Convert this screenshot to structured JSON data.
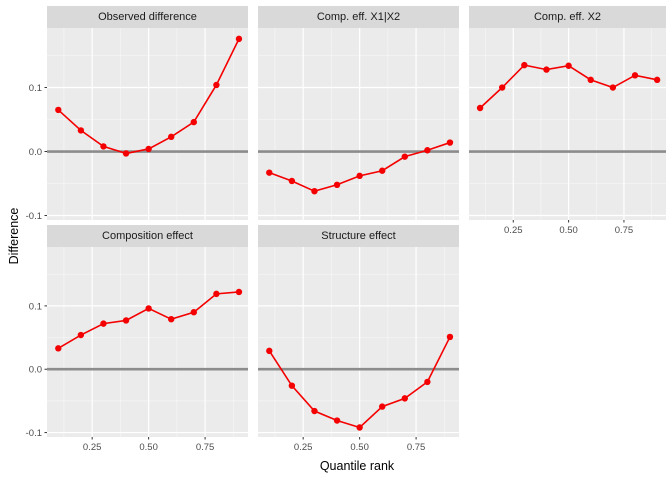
{
  "chart_data": {
    "type": "line",
    "xlabel": "Quantile rank",
    "ylabel": "Difference",
    "x": [
      0.1,
      0.2,
      0.3,
      0.4,
      0.5,
      0.6,
      0.7,
      0.8,
      0.9
    ],
    "x_ticks": {
      "values": [
        0.25,
        0.5,
        0.75
      ],
      "labels": [
        "0.25",
        "0.50",
        "0.75"
      ]
    },
    "y_ticks": {
      "values": [
        -0.1,
        0,
        0.1
      ],
      "labels": [
        "-0.1",
        "0.0",
        "0.1"
      ]
    },
    "x_minor": [
      0.125,
      0.375,
      0.625,
      0.875
    ],
    "y_minor": [
      -0.05,
      0.05,
      0.15
    ],
    "xlim": [
      0.05,
      0.94
    ],
    "ylim": [
      -0.107,
      0.193
    ],
    "grid": "on",
    "legend": "none",
    "zero_line": 0,
    "facets": [
      {
        "title": "Observed difference",
        "row": 0,
        "col": 0,
        "values": [
          0.065,
          0.033,
          0.008,
          -0.003,
          0.004,
          0.023,
          0.046,
          0.104,
          0.176
        ]
      },
      {
        "title": "Comp. eff. X1|X2",
        "row": 0,
        "col": 1,
        "values": [
          -0.033,
          -0.046,
          -0.062,
          -0.052,
          -0.038,
          -0.03,
          -0.008,
          0.002,
          0.014
        ]
      },
      {
        "title": "Comp. eff. X2",
        "row": 0,
        "col": 2,
        "values": [
          0.068,
          0.1,
          0.135,
          0.128,
          0.134,
          0.112,
          0.1,
          0.119,
          0.112
        ]
      },
      {
        "title": "Composition effect",
        "row": 1,
        "col": 0,
        "values": [
          0.033,
          0.054,
          0.072,
          0.077,
          0.096,
          0.079,
          0.09,
          0.119,
          0.122
        ]
      },
      {
        "title": "Structure effect",
        "row": 1,
        "col": 1,
        "values": [
          0.029,
          -0.026,
          -0.066,
          -0.081,
          -0.092,
          -0.059,
          -0.046,
          -0.02,
          0.051
        ]
      }
    ],
    "colors": {
      "series": "#F40000",
      "zero_line": "#8C8C8C",
      "panel_bg": "#EBEBEB",
      "strip_bg": "#D9D9D9",
      "grid_major": "#FFFFFF",
      "tick_mark": "#333333",
      "tick_label": "#4D4D4D",
      "strip_text": "#1A1A1A",
      "axis_title": "#000000"
    }
  }
}
